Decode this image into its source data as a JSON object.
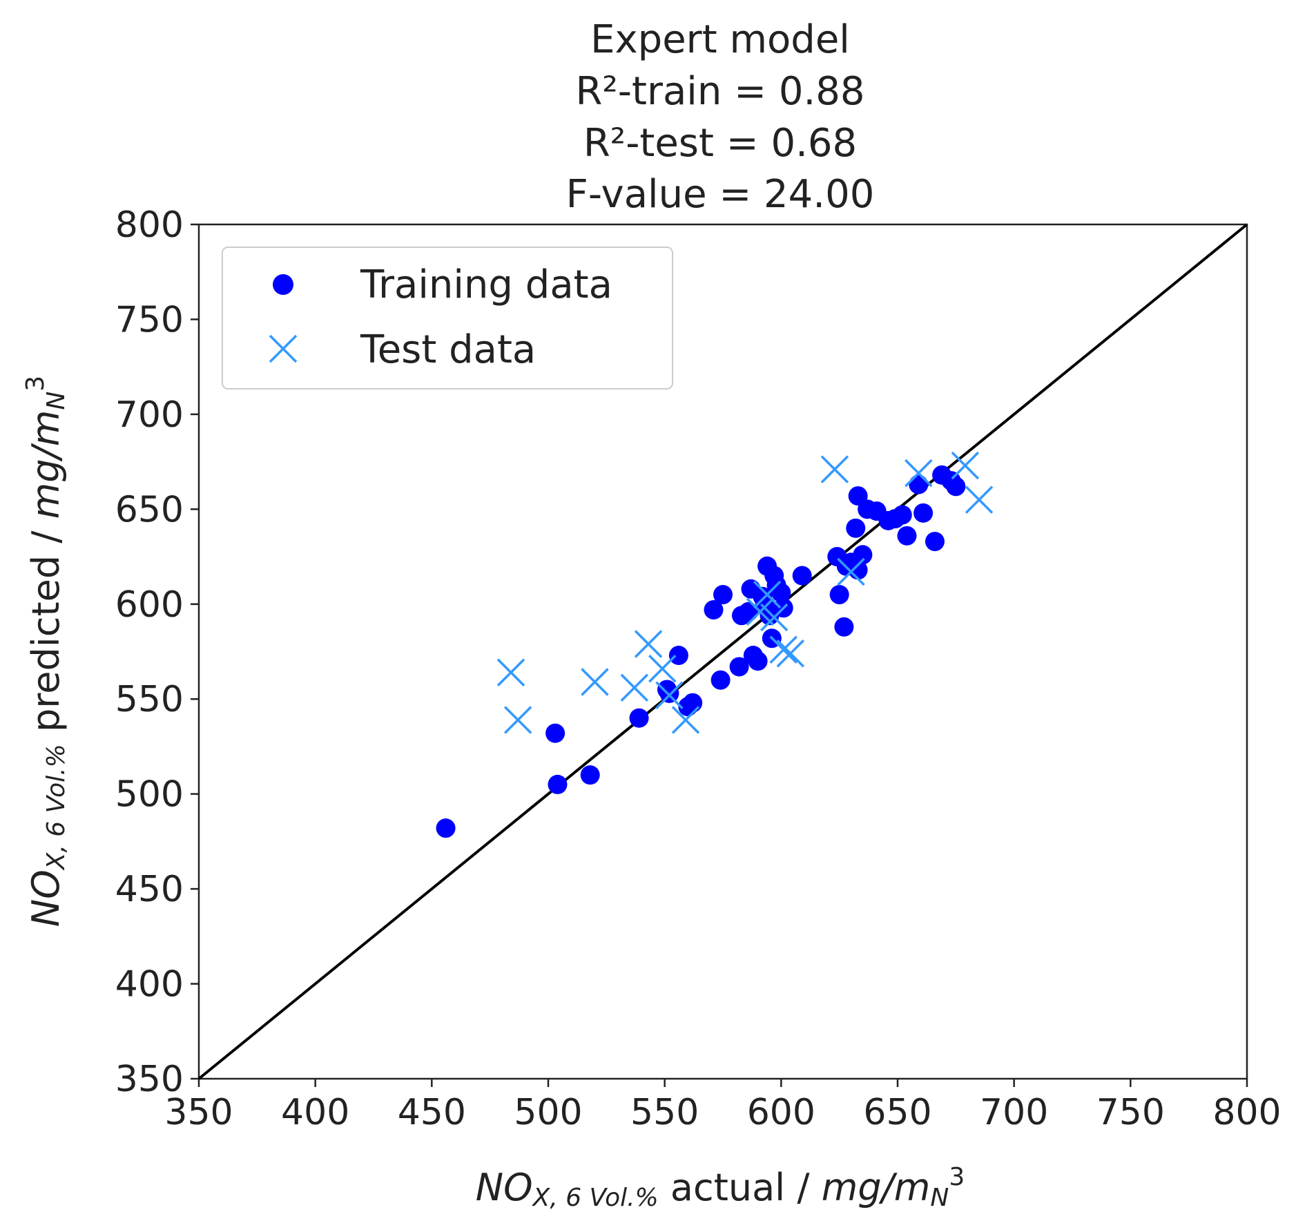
{
  "chart_data": {
    "type": "scatter",
    "title_lines": [
      "Expert model",
      "R²-train = 0.88",
      "R²-test = 0.68",
      "F-value = 24.00"
    ],
    "xlabel": {
      "main": "NO",
      "sub": "X, 6 Vol.%",
      "text": " actual / ",
      "unit": "mg/m",
      "unit_sub": "N",
      "unit_sup": "3"
    },
    "ylabel": {
      "main": "NO",
      "sub": "X, 6 Vol.%",
      "text": " predicted / ",
      "unit": "mg/m",
      "unit_sub": "N",
      "unit_sup": "3"
    },
    "xlim": [
      350,
      800
    ],
    "ylim": [
      350,
      800
    ],
    "x_ticks": [
      350,
      400,
      450,
      500,
      550,
      600,
      650,
      700,
      750,
      800
    ],
    "y_ticks": [
      350,
      400,
      450,
      500,
      550,
      600,
      650,
      700,
      750,
      800
    ],
    "grid": false,
    "legend_position": "top-left",
    "reference_line": {
      "from": [
        350,
        350
      ],
      "to": [
        800,
        800
      ],
      "color": "#000000"
    },
    "series": [
      {
        "name": "Training data",
        "marker": "circle",
        "color": "#0000ff",
        "points": [
          [
            456,
            482
          ],
          [
            503,
            532
          ],
          [
            504,
            505
          ],
          [
            518,
            510
          ],
          [
            539,
            540
          ],
          [
            551,
            555
          ],
          [
            552,
            553
          ],
          [
            556,
            573
          ],
          [
            560,
            546
          ],
          [
            562,
            548
          ],
          [
            571,
            597
          ],
          [
            574,
            560
          ],
          [
            575,
            605
          ],
          [
            582,
            567
          ],
          [
            583,
            594
          ],
          [
            586,
            596
          ],
          [
            587,
            608
          ],
          [
            588,
            573
          ],
          [
            590,
            570
          ],
          [
            592,
            604
          ],
          [
            593,
            600
          ],
          [
            594,
            620
          ],
          [
            595,
            594
          ],
          [
            596,
            582
          ],
          [
            597,
            615
          ],
          [
            598,
            610
          ],
          [
            600,
            606
          ],
          [
            601,
            598
          ],
          [
            609,
            615
          ],
          [
            624,
            625
          ],
          [
            625,
            605
          ],
          [
            627,
            588
          ],
          [
            628,
            620
          ],
          [
            630,
            622
          ],
          [
            632,
            640
          ],
          [
            633,
            657
          ],
          [
            633,
            618
          ],
          [
            635,
            626
          ],
          [
            637,
            650
          ],
          [
            641,
            649
          ],
          [
            646,
            644
          ],
          [
            649,
            645
          ],
          [
            652,
            647
          ],
          [
            654,
            636
          ],
          [
            659,
            663
          ],
          [
            661,
            648
          ],
          [
            666,
            633
          ],
          [
            669,
            668
          ],
          [
            673,
            665
          ],
          [
            675,
            662
          ]
        ]
      },
      {
        "name": "Test data",
        "marker": "x",
        "color": "#3399ff",
        "points": [
          [
            484,
            564
          ],
          [
            487,
            539
          ],
          [
            520,
            559
          ],
          [
            537,
            556
          ],
          [
            543,
            579
          ],
          [
            549,
            566
          ],
          [
            552,
            552
          ],
          [
            559,
            539
          ],
          [
            591,
            596
          ],
          [
            594,
            605
          ],
          [
            597,
            593
          ],
          [
            601,
            576
          ],
          [
            604,
            574
          ],
          [
            623,
            671
          ],
          [
            630,
            617
          ],
          [
            659,
            669
          ],
          [
            679,
            673
          ],
          [
            685,
            655
          ]
        ]
      }
    ]
  }
}
